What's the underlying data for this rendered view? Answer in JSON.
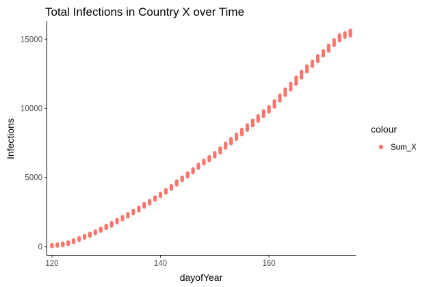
{
  "chart_data": {
    "type": "scatter",
    "title": "Total Infections in Country X over Time",
    "xlabel": "dayofYear",
    "ylabel": "Infections",
    "xlim": [
      119,
      176
    ],
    "ylim": [
      -650,
      16300
    ],
    "xticks": [
      120,
      140,
      160
    ],
    "yticks": [
      0,
      5000,
      10000,
      15000
    ],
    "grid": false,
    "legend": {
      "title": "colour",
      "position": "right",
      "entries": [
        {
          "name": "Sum_X",
          "color": "#F8766D"
        }
      ]
    },
    "series": [
      {
        "name": "Sum_X",
        "color": "#F8766D",
        "x": [
          120,
          121,
          122,
          123,
          124,
          125,
          126,
          127,
          128,
          129,
          130,
          131,
          132,
          133,
          134,
          135,
          136,
          137,
          138,
          139,
          140,
          141,
          142,
          143,
          144,
          145,
          146,
          147,
          148,
          149,
          150,
          151,
          152,
          153,
          154,
          155,
          156,
          157,
          158,
          159,
          160,
          161,
          162,
          163,
          164,
          165,
          166,
          167,
          168,
          169,
          170,
          171,
          172,
          173,
          174,
          175
        ],
        "y_min": [
          0,
          40,
          80,
          160,
          300,
          460,
          620,
          760,
          940,
          1120,
          1320,
          1500,
          1730,
          1950,
          2160,
          2380,
          2600,
          2860,
          3100,
          3370,
          3620,
          3880,
          4160,
          4470,
          4790,
          5060,
          5360,
          5680,
          5990,
          6230,
          6500,
          6780,
          7130,
          7450,
          7770,
          8100,
          8420,
          8750,
          9080,
          9420,
          9750,
          10100,
          10550,
          10950,
          11350,
          11750,
          12200,
          12650,
          13050,
          13400,
          13800,
          14150,
          14550,
          14900,
          15150,
          15250
        ],
        "y_max": [
          130,
          180,
          240,
          330,
          480,
          640,
          790,
          960,
          1130,
          1320,
          1520,
          1730,
          1950,
          2160,
          2380,
          2600,
          2840,
          3100,
          3330,
          3580,
          3840,
          4120,
          4410,
          4740,
          5020,
          5320,
          5620,
          5950,
          6240,
          6500,
          6790,
          7130,
          7460,
          7790,
          8120,
          8460,
          8790,
          9130,
          9450,
          9800,
          10120,
          10540,
          10950,
          11380,
          11800,
          12250,
          12660,
          13050,
          13400,
          13800,
          14150,
          14550,
          14950,
          15300,
          15450,
          15650
        ]
      }
    ]
  }
}
